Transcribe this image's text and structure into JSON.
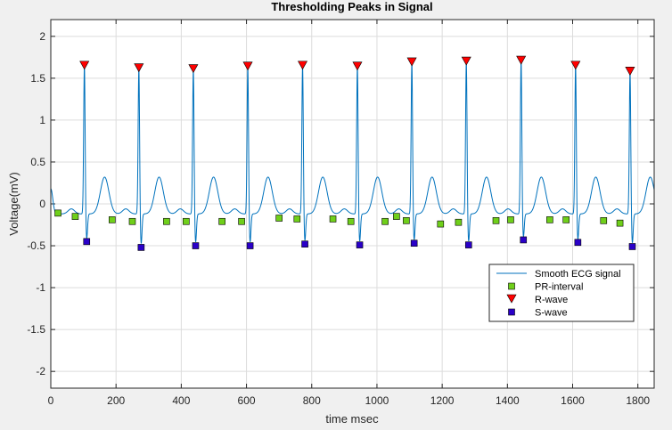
{
  "chart_data": {
    "type": "line",
    "title": "Thresholding Peaks in Signal",
    "xlabel": "time msec",
    "ylabel": "Voltage(mV)",
    "xlim": [
      0,
      1850
    ],
    "ylim": [
      -2.2,
      2.2
    ],
    "xticks": [
      0,
      200,
      400,
      600,
      800,
      1000,
      1200,
      1400,
      1600,
      1800
    ],
    "yticks": [
      -2,
      -1.5,
      -1,
      -0.5,
      0,
      0.5,
      1,
      1.5,
      2
    ],
    "xtick_labels": [
      "0",
      "200",
      "400",
      "600",
      "800",
      "1000",
      "1200",
      "1400",
      "1600",
      "1800"
    ],
    "ytick_labels": [
      "-2",
      "-1.5",
      "-1",
      "-0.5",
      "0",
      "0.5",
      "1",
      "1.5",
      "2"
    ],
    "grid": true,
    "legend_position": "bottom-right",
    "colors": {
      "signal": "#0072bd",
      "pr_fill": "#6fcf1a",
      "r_fill": "#ff0000",
      "s_fill": "#2a00c8",
      "axes_bg": "#ffffff",
      "figure_bg": "#f0f0f0",
      "grid": "#dcdcdc"
    },
    "series": [
      {
        "name": "Smooth ECG signal",
        "kind": "line",
        "beats_at_r_peak": [
          103,
          270,
          437,
          604,
          772,
          940,
          1107,
          1274,
          1442,
          1609,
          1776
        ],
        "r_peak_amplitudes": [
          1.65,
          1.62,
          1.61,
          1.64,
          1.65,
          1.64,
          1.69,
          1.7,
          1.71,
          1.65,
          1.58
        ],
        "s_amplitudes": [
          -0.45,
          -0.52,
          -0.5,
          -0.5,
          -0.48,
          -0.49,
          -0.47,
          -0.49,
          -0.43,
          -0.46,
          -0.51
        ],
        "t_wave_amplitude": 0.32,
        "baseline": -0.12,
        "x_range": [
          0,
          1850
        ]
      },
      {
        "name": "PR-interval",
        "kind": "marker",
        "marker": "square",
        "x": [
          22,
          75,
          188,
          250,
          355,
          415,
          525,
          585,
          700,
          755,
          865,
          920,
          1025,
          1060,
          1090,
          1195,
          1250,
          1365,
          1410,
          1530,
          1580,
          1695,
          1745
        ],
        "y": [
          -0.11,
          -0.15,
          -0.19,
          -0.21,
          -0.21,
          -0.21,
          -0.21,
          -0.21,
          -0.17,
          -0.18,
          -0.18,
          -0.21,
          -0.21,
          -0.15,
          -0.2,
          -0.24,
          -0.22,
          -0.2,
          -0.19,
          -0.19,
          -0.19,
          -0.2,
          -0.23
        ]
      },
      {
        "name": "R-wave",
        "kind": "marker",
        "marker": "triangle-down",
        "x": [
          103,
          270,
          437,
          604,
          772,
          940,
          1107,
          1274,
          1442,
          1609,
          1776
        ],
        "y": [
          1.65,
          1.62,
          1.61,
          1.64,
          1.65,
          1.64,
          1.69,
          1.7,
          1.71,
          1.65,
          1.58
        ]
      },
      {
        "name": "S-wave",
        "kind": "marker",
        "marker": "square",
        "x": [
          110,
          277,
          444,
          611,
          779,
          947,
          1114,
          1281,
          1449,
          1616,
          1783
        ],
        "y": [
          -0.45,
          -0.52,
          -0.5,
          -0.5,
          -0.48,
          -0.49,
          -0.47,
          -0.49,
          -0.43,
          -0.46,
          -0.51
        ]
      }
    ]
  }
}
